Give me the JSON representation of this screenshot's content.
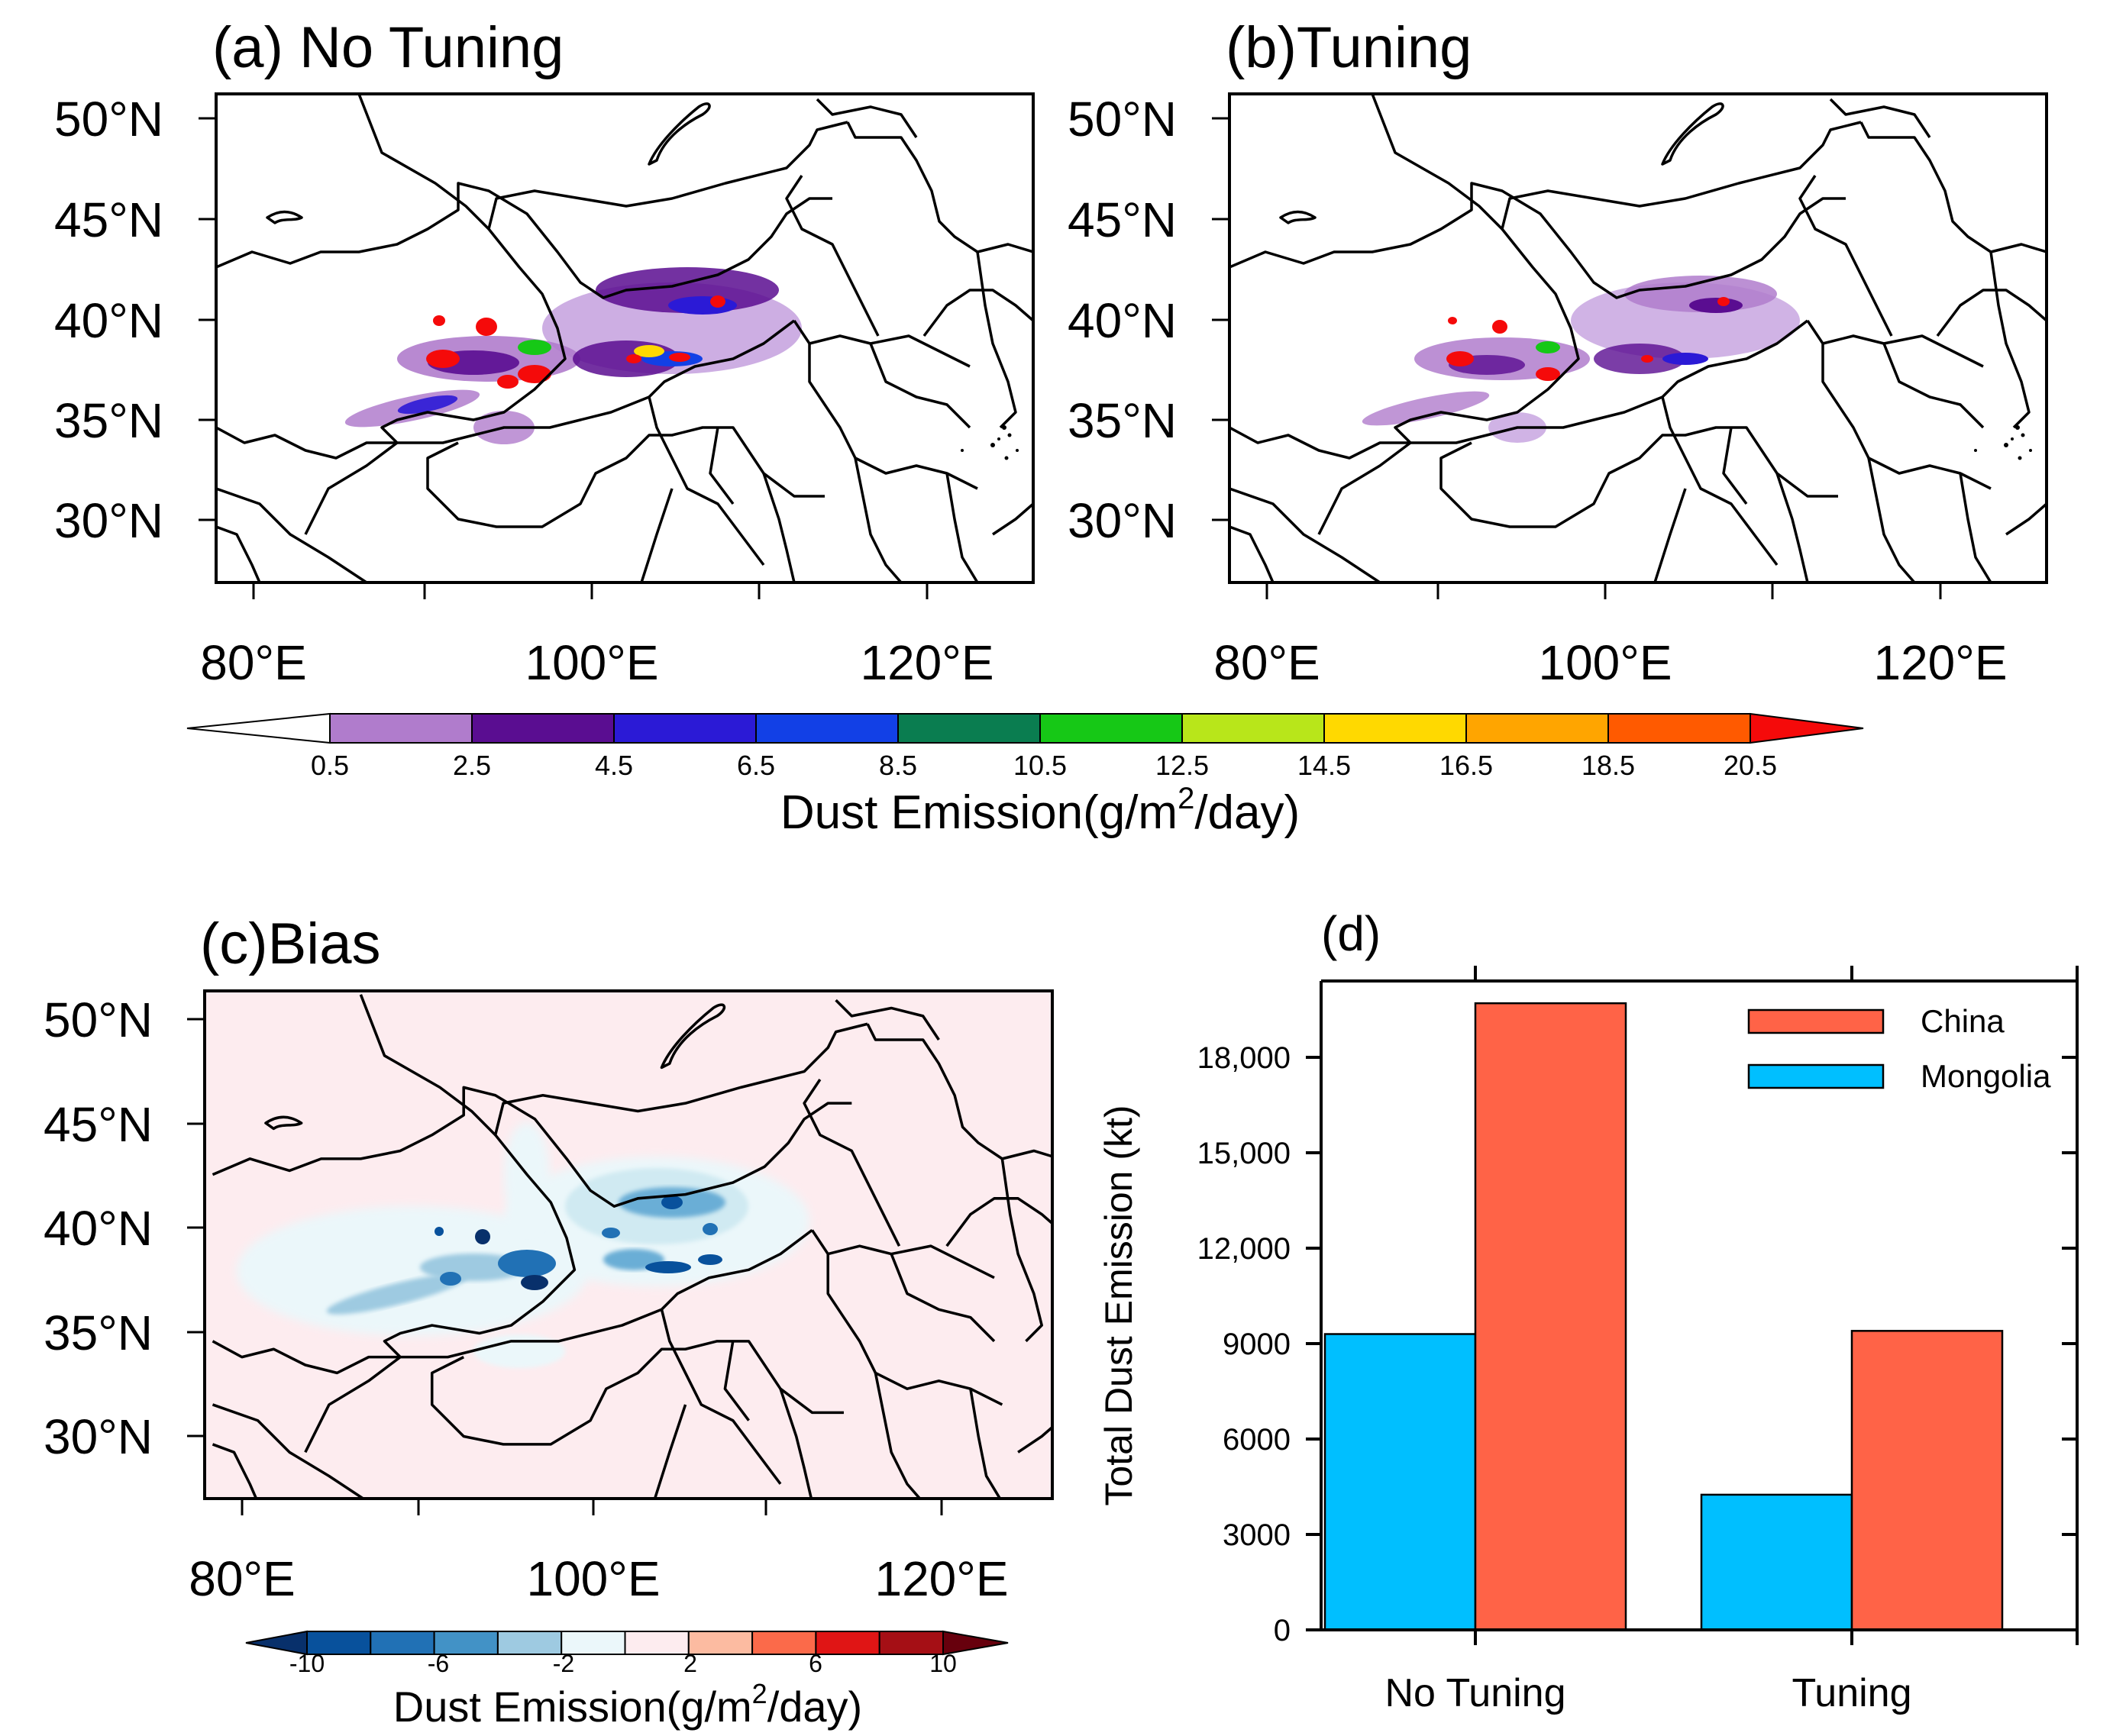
{
  "chart_data": [
    {
      "type": "heatmap",
      "panel": "a",
      "title": "(a) No Tuning",
      "lat_ticks": [
        "50°N",
        "45°N",
        "40°N",
        "35°N",
        "30°N"
      ],
      "lon_ticks": [
        "80°E",
        "100°E",
        "120°E"
      ]
    },
    {
      "type": "heatmap",
      "panel": "b",
      "title": "(b)Tuning",
      "lat_ticks": [
        "50°N",
        "45°N",
        "40°N",
        "35°N",
        "30°N"
      ],
      "lon_ticks": [
        "80°E",
        "100°E",
        "120°E"
      ]
    },
    {
      "type": "heatmap",
      "panel": "colorbar-top",
      "labels": [
        "0.5",
        "2.5",
        "4.5",
        "6.5",
        "8.5",
        "10.5",
        "12.5",
        "14.5",
        "16.5",
        "18.5",
        "20.5"
      ],
      "colors": [
        "#ffffff",
        "#b07ccc",
        "#5a0d91",
        "#2b1ad6",
        "#1240e6",
        "#0a7d50",
        "#16c816",
        "#b8e61a",
        "#ffd900",
        "#ffa500",
        "#ff5a00",
        "#f50a0a"
      ],
      "title_main": "Dust Emission(g/m",
      "title_sup": "2",
      "title_end": "/day)"
    },
    {
      "type": "heatmap",
      "panel": "c",
      "title": "(c)Bias",
      "lat_ticks": [
        "50°N",
        "45°N",
        "40°N",
        "35°N",
        "30°N"
      ],
      "lon_ticks": [
        "80°E",
        "100°E",
        "120°E"
      ]
    },
    {
      "type": "heatmap",
      "panel": "colorbar-bottom",
      "labels": [
        "-10",
        "-6",
        "-2",
        "2",
        "6",
        "10"
      ],
      "colors": [
        "#08306b",
        "#08519c",
        "#2171b5",
        "#4292c6",
        "#9ecae1",
        "#ebf7fa",
        "#fdecef",
        "#fcbba1",
        "#fb6a4a",
        "#e01515",
        "#a50f15",
        "#67000d"
      ],
      "title_main": "Dust Emission(g/m",
      "title_sup": "2",
      "title_end": "/day)"
    },
    {
      "type": "bar",
      "panel": "d",
      "title": "(d)",
      "categories": [
        "No Tuning",
        "Tuning"
      ],
      "series": [
        {
          "name": "Mongolia",
          "color": "#00bfff",
          "values": [
            9300,
            4250
          ]
        },
        {
          "name": "China",
          "color": "#ff6347",
          "values": [
            19700,
            9400
          ]
        }
      ],
      "ylabel": "Total Dust Emission (kt)",
      "yticks": [
        0,
        3000,
        6000,
        9000,
        12000,
        15000,
        18000
      ],
      "ytick_labels": [
        "0",
        "3000",
        "6000",
        "9000",
        "12,000",
        "15,000",
        "18,000"
      ],
      "ylim": [
        0,
        20400
      ],
      "legend_position": "top-right"
    }
  ]
}
